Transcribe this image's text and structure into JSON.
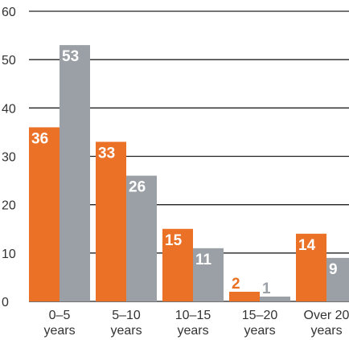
{
  "chart_data": {
    "type": "bar",
    "categories": [
      [
        "0–5",
        "years"
      ],
      [
        "5–10",
        "years"
      ],
      [
        "10–15",
        "years"
      ],
      [
        "15–20",
        "years"
      ],
      [
        "Over 20",
        "years"
      ]
    ],
    "series": [
      {
        "values": [
          36,
          33,
          15,
          2,
          14
        ],
        "color": "#ea7125"
      },
      {
        "values": [
          53,
          26,
          11,
          1,
          9
        ],
        "color": "#9aa0a6"
      }
    ],
    "yticks": [
      0,
      10,
      20,
      30,
      40,
      50,
      60
    ],
    "ylim": [
      0,
      60
    ],
    "grid": true,
    "legend": "none",
    "label_colors": {
      "inside": "#ffffff",
      "outside_series": [
        "#ea7125",
        "#9aa0a6"
      ]
    }
  }
}
